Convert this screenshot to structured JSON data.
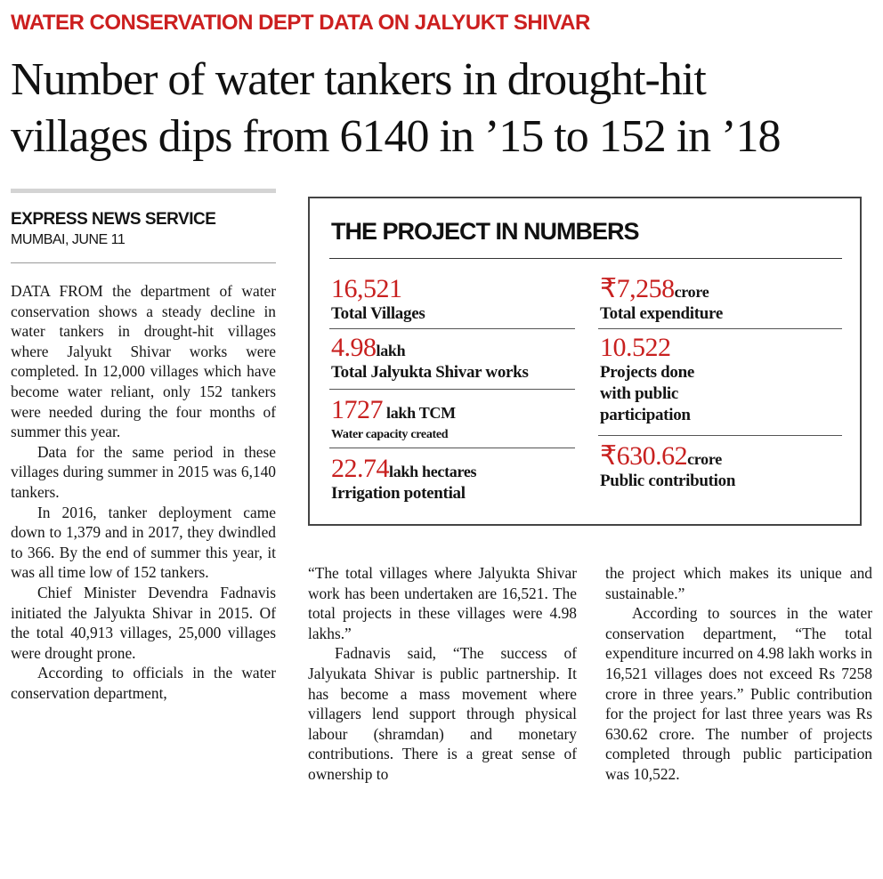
{
  "kicker": "WATER CONSERVATION DEPT DATA ON JALYUKT SHIVAR",
  "headline": {
    "line1": "Number of water tankers in drought-hit",
    "line2": "villages dips from 6140 in ’15 to 152 in ’18"
  },
  "byline": "EXPRESS NEWS SERVICE",
  "dateline": "MUMBAI, JUNE 11",
  "box": {
    "title": "THE PROJECT IN NUMBERS",
    "stats": [
      {
        "num": "16,521",
        "unit": "",
        "label": "Total Villages"
      },
      {
        "num": "4.98",
        "unit": "lakh",
        "label": "Total Jalyukta Shivar works"
      },
      {
        "num": "1727",
        "unit": "lakh TCM",
        "label": "Water capacity created"
      },
      {
        "num": "22.74",
        "unit": "lakh hectares",
        "label": "Irrigation potential"
      },
      {
        "num": "₹7,258",
        "unit": "crore",
        "label": "Total expenditure"
      },
      {
        "num": "10.522",
        "unit": "",
        "label_lines": [
          "Projects done",
          "with public",
          "participation"
        ]
      },
      {
        "num": "₹630.62",
        "unit": "crore",
        "label": "Public contribution"
      }
    ]
  },
  "column1": [
    "DATA FROM the department of water conservation shows a steady decline in water tankers in drought-hit villages where Jalyukt Shivar works were completed. In 12,000 villages which have become water reliant, only 152 tankers were needed during the four months of summer this year.",
    "Data for the same period in these villages during summer in 2015 was 6,140 tankers.",
    "In 2016, tanker deployment came down to 1,379 and in 2017, they dwindled to 366. By the end of summer this year, it was all time low of 152 tankers.",
    "Chief Minister Devendra Fadnavis initiated the Jalyukta Shivar in 2015. Of the total 40,913 villages, 25,000 villages were drought prone.",
    "According to officials in the water conservation department,"
  ],
  "column2": [
    "“The total villages where Jalyukta Shivar work has been undertaken are 16,521. The total projects in these villages were 4.98 lakhs.”",
    "Fadnavis said, “The success of Jalyukata Shivar is public partnership. It has become a mass movement where villagers lend support through physical labour (shramdan) and monetary contributions. There is a great sense of ownership to"
  ],
  "column3": [
    "the project which makes its unique and sustainable.”",
    "According to sources in the water conservation department, “The total expenditure incurred on 4.98 lakh works in 16,521 villages does not exceed Rs 7258 crore in three years.” Public contribution for the project for last three years was Rs 630.62 crore. The number of projects completed through public participation was 10,522."
  ]
}
